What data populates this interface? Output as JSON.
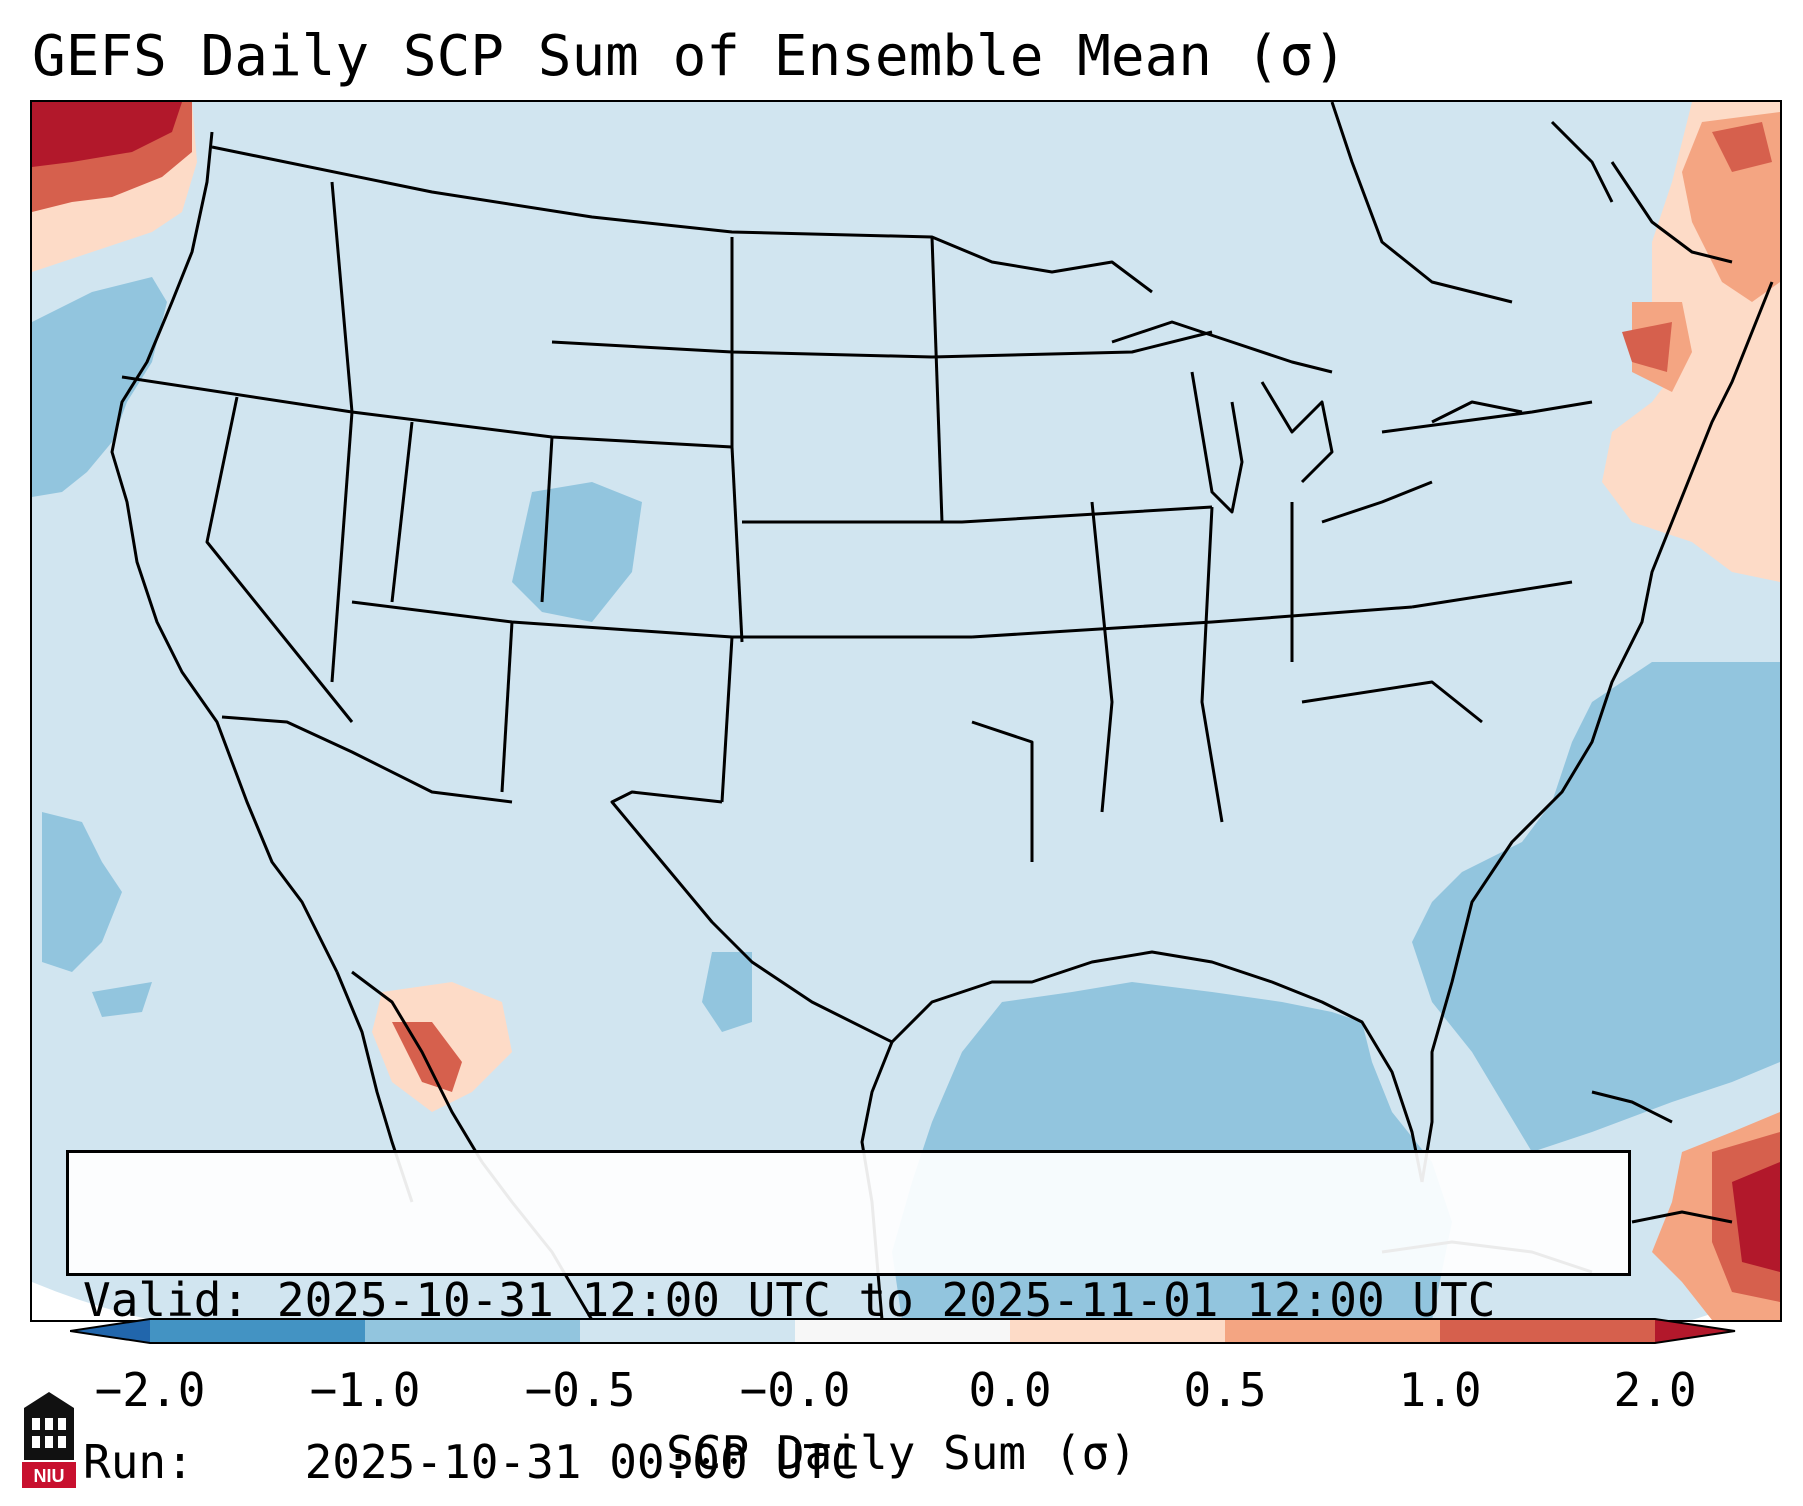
{
  "title": "GEFS Daily SCP Sum of Ensemble Mean (σ)",
  "info_box": {
    "valid_label": "Valid:",
    "valid_value": "2025-10-31 12:00 UTC to 2025-11-01 12:00 UTC",
    "run_label": "Run:",
    "run_value": "2025-10-31 00:00 UTC"
  },
  "colorbar": {
    "label": "SCP Daily Sum (σ)",
    "ticks": [
      "−2.0",
      "−1.0",
      "−0.5",
      "−0.0",
      "0.0",
      "0.5",
      "1.0",
      "2.0"
    ],
    "bins": [
      {
        "range": "< -2.0",
        "color": "#2166ac"
      },
      {
        "range": "-2.0 to -1.0",
        "color": "#4393c3"
      },
      {
        "range": "-1.0 to -0.5",
        "color": "#92c5de"
      },
      {
        "range": "-0.5 to -0.0",
        "color": "#d1e5f0"
      },
      {
        "range": "-0.0 to 0.0",
        "color": "#f7f7f7"
      },
      {
        "range": "0.0 to 0.5",
        "color": "#fddbc7"
      },
      {
        "range": "0.5 to 1.0",
        "color": "#f4a582"
      },
      {
        "range": "1.0 to 2.0",
        "color": "#d6604d"
      },
      {
        "range": "> 2.0",
        "color": "#b2182b"
      }
    ]
  },
  "map": {
    "background_color": "#d1e5f0",
    "ocean_color": "#92c5de",
    "border_color": "#000000"
  },
  "logo": {
    "text": "NIU",
    "colors": {
      "red": "#c8102e",
      "black": "#111111"
    }
  }
}
